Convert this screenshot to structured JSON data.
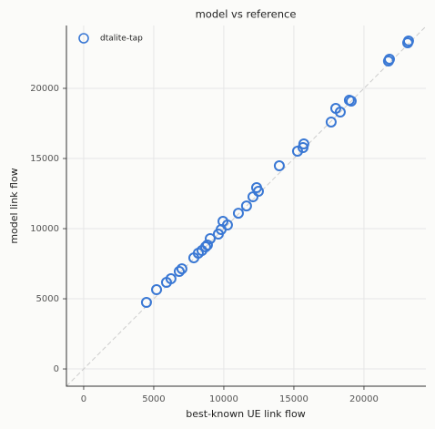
{
  "chart_data": {
    "type": "scatter",
    "title": "model vs reference",
    "x_label": "best-known UE link flow",
    "y_label": "model link flow",
    "xlim": [
      -1230,
      24420
    ],
    "ylim": [
      -1230,
      24480
    ],
    "xticks": [
      0,
      5000,
      10000,
      15000,
      20000
    ],
    "yticks": [
      0,
      5000,
      10000,
      15000,
      20000
    ],
    "grid": true,
    "legend": "upper left",
    "series": [
      {
        "name": "dtalite-tap",
        "color": "#3a78d4",
        "x": [
          4480,
          5200,
          5910,
          6230,
          6820,
          7010,
          7860,
          8180,
          8440,
          8700,
          8830,
          9030,
          9610,
          9810,
          9940,
          10260,
          11040,
          11620,
          12080,
          12340,
          12470,
          13960,
          15260,
          15650,
          15710,
          17660,
          17990,
          18310,
          18960,
          19090,
          21750,
          21820,
          23120,
          23180
        ],
        "values": [
          4740,
          5650,
          6170,
          6430,
          6950,
          7140,
          7920,
          8250,
          8440,
          8700,
          8830,
          9290,
          9610,
          9940,
          10520,
          10260,
          11100,
          11620,
          12270,
          12920,
          12660,
          14480,
          15520,
          15780,
          16040,
          17600,
          18570,
          18310,
          19160,
          19090,
          21950,
          22080,
          23250,
          23380
        ]
      }
    ]
  }
}
